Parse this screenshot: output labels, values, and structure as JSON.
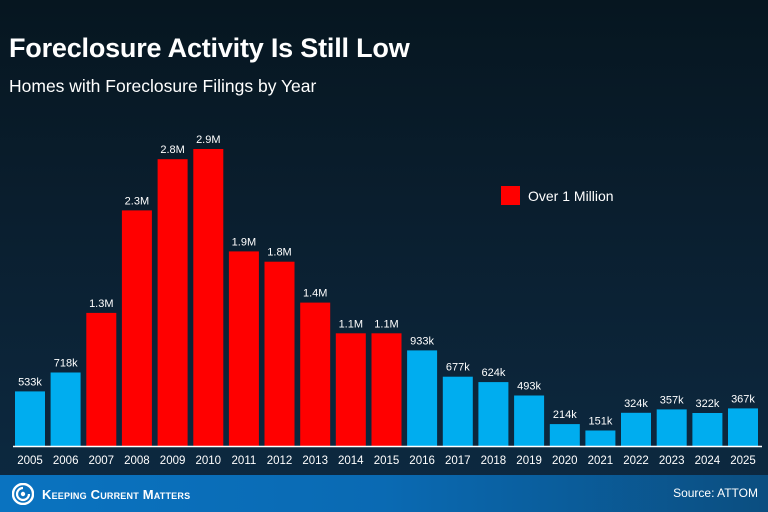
{
  "header": {
    "title": "Foreclosure Activity Is Still Low",
    "subtitle": "Homes with Foreclosure Filings by Year"
  },
  "legend": {
    "label": "Over 1 Million",
    "color": "#ff0000"
  },
  "footer": {
    "brand": "Keeping Current Matters",
    "source": "Source: ATTOM"
  },
  "colors": {
    "over_million": "#ff0000",
    "under_million": "#00adef",
    "baseline": "#ffffff"
  },
  "chart_data": {
    "type": "bar",
    "title": "Foreclosure Activity Is Still Low",
    "subtitle": "Homes with Foreclosure Filings by Year",
    "xlabel": "",
    "ylabel": "",
    "categories": [
      "2005",
      "2006",
      "2007",
      "2008",
      "2009",
      "2010",
      "2011",
      "2012",
      "2013",
      "2014",
      "2015",
      "2016",
      "2017",
      "2018",
      "2019",
      "2020",
      "2021",
      "2022",
      "2023",
      "2024",
      "2025"
    ],
    "values": [
      533000,
      718000,
      1300000,
      2300000,
      2800000,
      2900000,
      1900000,
      1800000,
      1400000,
      1100000,
      1100000,
      933000,
      677000,
      624000,
      493000,
      214000,
      151000,
      324000,
      357000,
      322000,
      367000
    ],
    "labels": [
      "533k",
      "718k",
      "1.3M",
      "2.3M",
      "2.8M",
      "2.9M",
      "1.9M",
      "1.8M",
      "1.4M",
      "1.1M",
      "1.1M",
      "933k",
      "677k",
      "624k",
      "493k",
      "214k",
      "151k",
      "324k",
      "357k",
      "322k",
      "367k"
    ],
    "over_million": [
      false,
      false,
      true,
      true,
      true,
      true,
      true,
      true,
      true,
      true,
      true,
      false,
      false,
      false,
      false,
      false,
      false,
      false,
      false,
      false,
      false
    ],
    "ylim": [
      0,
      2900000
    ],
    "grid": false,
    "legend": {
      "entries": [
        "Over 1 Million"
      ],
      "placement": "top-right"
    }
  }
}
